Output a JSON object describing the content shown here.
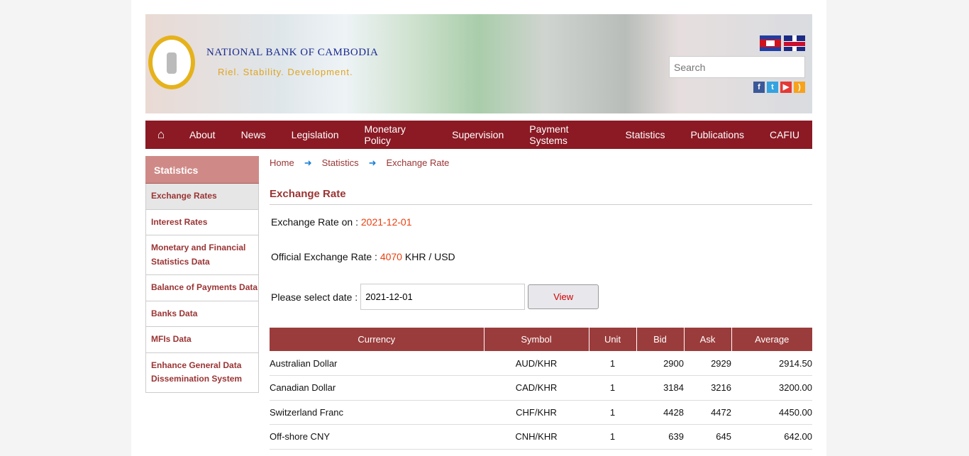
{
  "header": {
    "bank_name": "NATIONAL BANK OF CAMBODIA",
    "slogan": "Riel. Stability. Development.",
    "search_placeholder": "Search",
    "languages": [
      "khmer-flag",
      "uk-flag"
    ],
    "social": [
      "facebook-icon",
      "twitter-icon",
      "youtube-icon",
      "rss-icon"
    ]
  },
  "nav": {
    "items": [
      "About",
      "News",
      "Legislation",
      "Monetary Policy",
      "Supervision",
      "Payment Systems",
      "Statistics",
      "Publications",
      "CAFIU"
    ]
  },
  "sidebar": {
    "title": "Statistics",
    "items": [
      "Exchange Rates",
      "Interest Rates",
      "Monetary and Financial Statistics Data",
      "Balance of Payments Data",
      "Banks Data",
      "MFIs Data",
      "Enhance General Data Dissemination System"
    ]
  },
  "breadcrumb": [
    "Home",
    "Statistics",
    "Exchange Rate"
  ],
  "main": {
    "title": "Exchange Rate",
    "rate_on_label": "Exchange Rate on :",
    "rate_on_date": "2021-12-01",
    "official_label": "Official Exchange Rate :",
    "official_value": "4070",
    "official_unit": "KHR / USD",
    "select_label": "Please select date :",
    "date_value": "2021-12-01",
    "view_label": "View"
  },
  "colors": {
    "nav": "#8b1a24",
    "sidebar_header": "#cf8a87",
    "accent_text": "#9a3434",
    "table_header": "#9b3c3c",
    "highlight": "#e8400f"
  },
  "table": {
    "headers": [
      "Currency",
      "Symbol",
      "Unit",
      "Bid",
      "Ask",
      "Average"
    ],
    "rows": [
      [
        "Australian Dollar",
        "AUD/KHR",
        "1",
        "2900",
        "2929",
        "2914.50"
      ],
      [
        "Canadian Dollar",
        "CAD/KHR",
        "1",
        "3184",
        "3216",
        "3200.00"
      ],
      [
        "Switzerland Franc",
        "CHF/KHR",
        "1",
        "4428",
        "4472",
        "4450.00"
      ],
      [
        "Off-shore CNY",
        "CNH/KHR",
        "1",
        "639",
        "645",
        "642.00"
      ]
    ]
  }
}
